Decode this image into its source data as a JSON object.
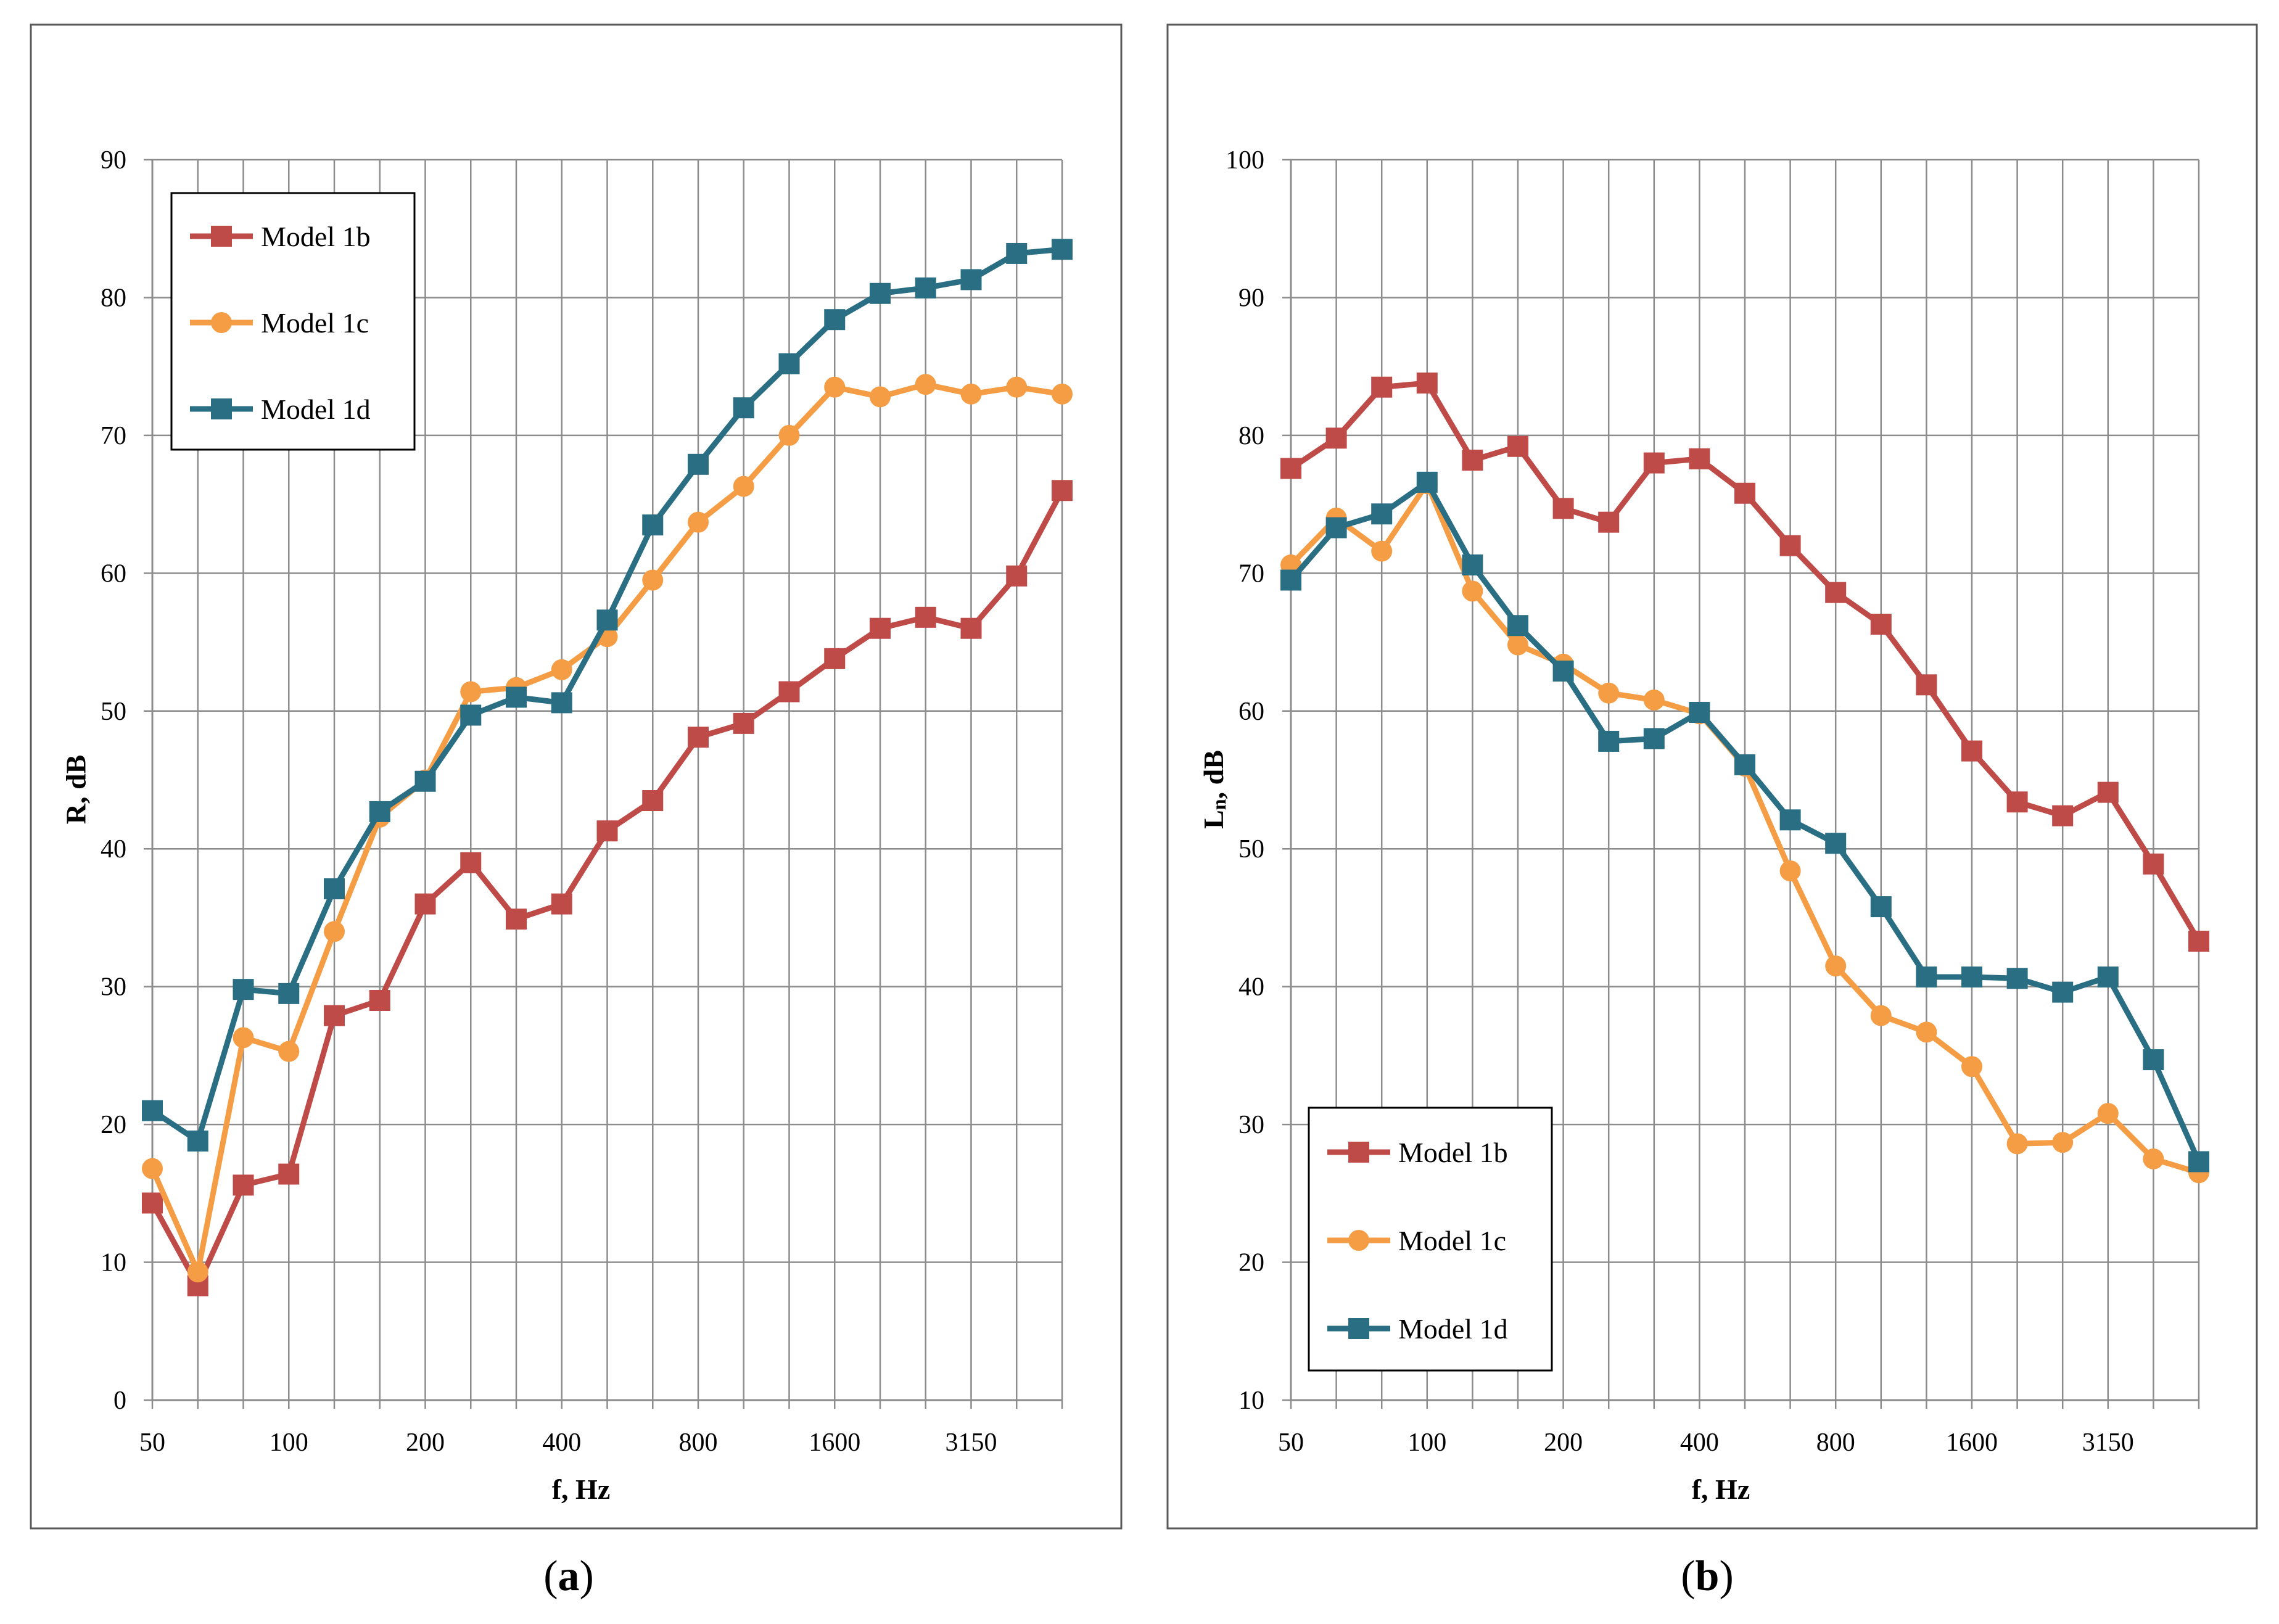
{
  "colors": {
    "model_1b": "#be4b48",
    "model_1c": "#f59d45",
    "model_1d": "#2a6e84",
    "grid": "#8c8c8c",
    "frame": "#595959"
  },
  "chart_data": [
    {
      "type": "line",
      "caption_prefix": "(",
      "caption_letter": "a",
      "caption_suffix": ")",
      "xlabel": "f, Hz",
      "ylabel": "R, dB",
      "ylim": [
        0,
        90
      ],
      "ytick_step": 10,
      "grid": true,
      "legend_position": "top-left",
      "x": [
        50,
        63,
        80,
        100,
        125,
        160,
        200,
        250,
        315,
        400,
        500,
        630,
        800,
        1000,
        1250,
        1600,
        2000,
        2500,
        3150,
        4000,
        5000
      ],
      "x_tick_labels": [
        "50",
        "100",
        "200",
        "400",
        "800",
        "1600",
        "3150"
      ],
      "x_tick_label_indices": [
        0,
        3,
        6,
        9,
        12,
        15,
        18
      ],
      "series": [
        {
          "name": "Model 1b",
          "marker": "square",
          "color_key": "model_1b",
          "values": [
            14.3,
            8.3,
            15.6,
            16.4,
            27.9,
            29.0,
            36.0,
            39.0,
            34.9,
            36.0,
            41.3,
            43.5,
            48.1,
            49.1,
            51.4,
            53.8,
            56.0,
            56.8,
            56.0,
            59.8,
            66.0
          ]
        },
        {
          "name": "Model 1c",
          "marker": "circle",
          "color_key": "model_1c",
          "values": [
            16.8,
            9.3,
            26.3,
            25.3,
            34.0,
            42.3,
            45.0,
            51.4,
            51.7,
            53.0,
            55.4,
            59.5,
            63.7,
            66.3,
            70.0,
            73.5,
            72.8,
            73.7,
            73.0,
            73.5,
            73.0
          ]
        },
        {
          "name": "Model 1d",
          "marker": "square",
          "color_key": "model_1d",
          "values": [
            21.0,
            18.8,
            29.8,
            29.5,
            37.1,
            42.7,
            44.9,
            49.7,
            51.0,
            50.6,
            56.6,
            63.5,
            67.9,
            72.0,
            75.2,
            78.4,
            80.3,
            80.7,
            81.3,
            83.2,
            83.5
          ]
        }
      ]
    },
    {
      "type": "line",
      "caption_prefix": "(",
      "caption_letter": "b",
      "caption_suffix": ")",
      "xlabel": "f, Hz",
      "ylabel_main": "L",
      "ylabel_sub": "n",
      "ylabel_rest": ", dB",
      "ylim": [
        10,
        100
      ],
      "ytick_step": 10,
      "grid": true,
      "legend_position": "bottom-left",
      "x": [
        50,
        63,
        80,
        100,
        125,
        160,
        200,
        250,
        315,
        400,
        500,
        630,
        800,
        1000,
        1250,
        1600,
        2000,
        2500,
        3150,
        4000,
        5000
      ],
      "x_tick_labels": [
        "50",
        "100",
        "200",
        "400",
        "800",
        "1600",
        "3150"
      ],
      "x_tick_label_indices": [
        0,
        3,
        6,
        9,
        12,
        15,
        18
      ],
      "series": [
        {
          "name": "Model 1b",
          "marker": "square",
          "color_key": "model_1b",
          "values": [
            77.6,
            79.8,
            83.5,
            83.8,
            78.2,
            79.2,
            74.7,
            73.7,
            78.0,
            78.3,
            75.8,
            72.0,
            68.6,
            66.3,
            61.9,
            57.1,
            53.4,
            52.4,
            54.1,
            48.9,
            43.3
          ]
        },
        {
          "name": "Model 1c",
          "marker": "circle",
          "color_key": "model_1c",
          "values": [
            70.6,
            74.0,
            71.6,
            76.5,
            68.7,
            64.8,
            63.4,
            61.3,
            60.8,
            59.8,
            56.0,
            48.4,
            41.5,
            37.9,
            36.7,
            34.2,
            28.6,
            28.7,
            30.8,
            27.5,
            26.5
          ]
        },
        {
          "name": "Model 1d",
          "marker": "square",
          "color_key": "model_1d",
          "values": [
            69.5,
            73.3,
            74.3,
            76.6,
            70.6,
            66.2,
            62.9,
            57.8,
            58.0,
            59.9,
            56.1,
            52.1,
            50.4,
            45.8,
            40.7,
            40.7,
            40.6,
            39.6,
            40.7,
            34.7,
            27.3
          ]
        }
      ]
    }
  ]
}
